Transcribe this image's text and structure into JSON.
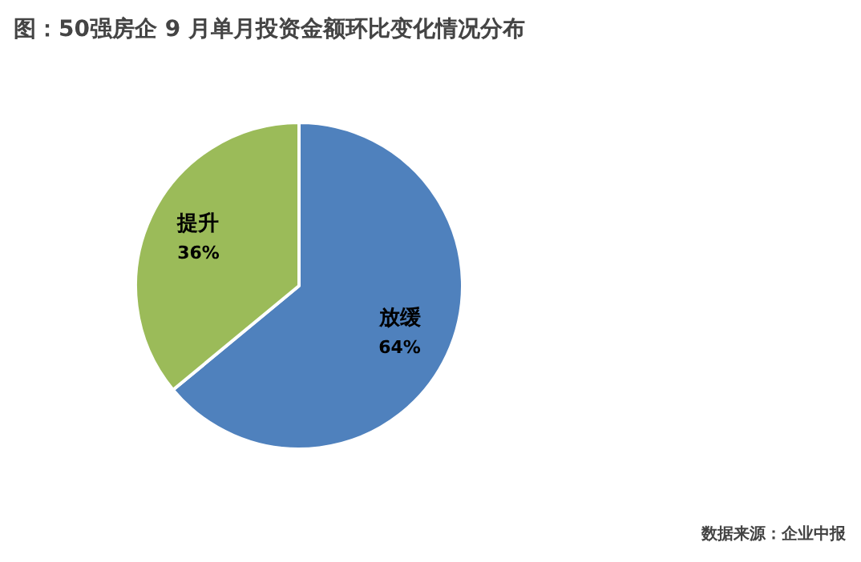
{
  "chart_data": {
    "type": "pie",
    "title": "图：50强房企 9 月单月投资金额环比变化情况分布",
    "categories": [
      "放缓",
      "提升"
    ],
    "values": [
      64,
      36
    ],
    "colors": [
      "#4f81bd",
      "#9bbb59"
    ],
    "value_labels": [
      "64%",
      "36%"
    ],
    "annotations": [
      "数据来源：企业中报"
    ]
  }
}
